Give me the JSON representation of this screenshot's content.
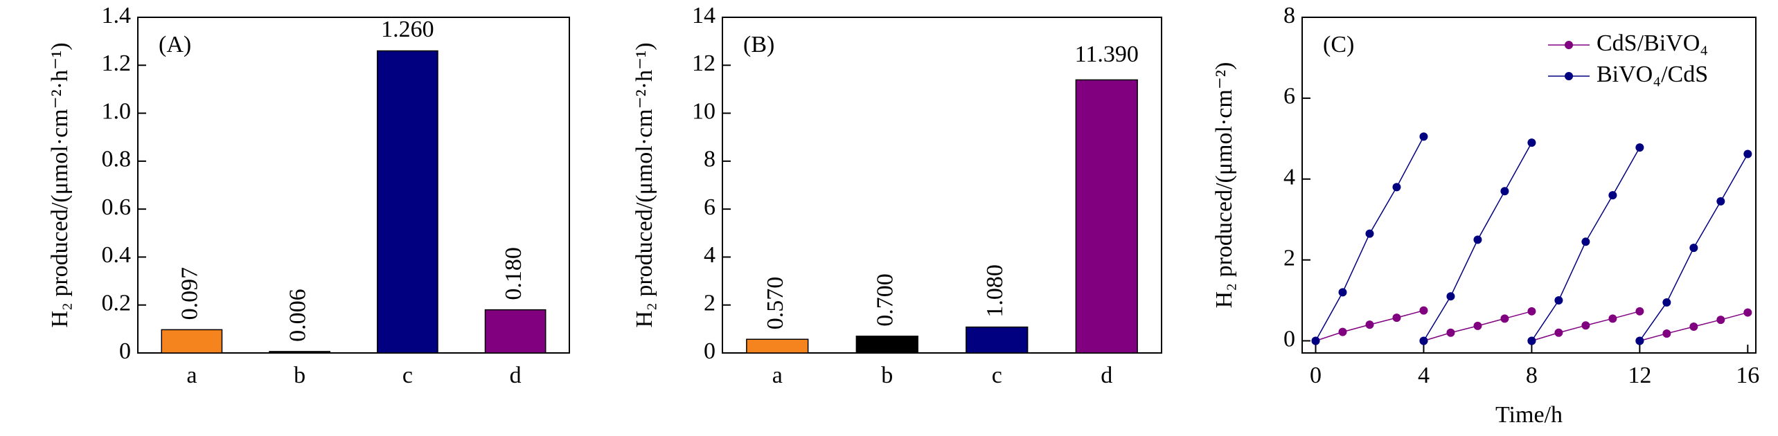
{
  "chart_data": [
    {
      "type": "bar",
      "panel": "(A)",
      "ylabel": "H₂ produced/(μmol·cm⁻²·h⁻¹)",
      "categories": [
        "a",
        "b",
        "c",
        "d"
      ],
      "values": [
        0.097,
        0.006,
        1.26,
        0.18
      ],
      "value_labels": [
        "0.097",
        "0.006",
        "1.260",
        "0.180"
      ],
      "colors": [
        "#f5841f",
        "#000000",
        "#000080",
        "#800080"
      ],
      "ylim": [
        0,
        1.4
      ],
      "yticks": [
        0,
        0.2,
        0.4,
        0.6,
        0.8,
        {
          "value": 1,
          "label": "1.0"
        },
        1.2,
        1.4
      ]
    },
    {
      "type": "bar",
      "panel": "(B)",
      "ylabel": "H₂ produced/(μmol·cm⁻²·h⁻¹)",
      "categories": [
        "a",
        "b",
        "c",
        "d"
      ],
      "values": [
        0.57,
        0.7,
        1.08,
        11.39
      ],
      "value_labels": [
        "0.570",
        "0.700",
        "1.080",
        "11.390"
      ],
      "colors": [
        "#f5841f",
        "#000000",
        "#000080",
        "#800080"
      ],
      "ylim": [
        0,
        14
      ],
      "yticks": [
        0,
        2,
        4,
        6,
        8,
        10,
        12,
        14
      ]
    },
    {
      "type": "line",
      "panel": "(C)",
      "ylabel": "H₂ produced/(μmol·cm⁻²)",
      "xlabel": "Time/h",
      "x": [
        0,
        1,
        2,
        3,
        4,
        null,
        4,
        5,
        6,
        7,
        8,
        null,
        8,
        9,
        10,
        11,
        12,
        null,
        12,
        13,
        14,
        15,
        16
      ],
      "series": [
        {
          "name": "CdS/BiVO₄",
          "color": "#800080",
          "values": [
            0,
            0.22,
            0.4,
            0.57,
            0.75,
            null,
            0,
            0.2,
            0.37,
            0.55,
            0.73,
            null,
            0,
            0.2,
            0.38,
            0.55,
            0.73,
            null,
            0,
            0.18,
            0.35,
            0.52,
            0.7
          ]
        },
        {
          "name": "BiVO₄/CdS",
          "color": "#000080",
          "values": [
            0,
            1.2,
            2.65,
            3.8,
            5.05,
            null,
            0,
            1.1,
            2.5,
            3.7,
            4.9,
            null,
            0,
            1.0,
            2.45,
            3.6,
            4.78,
            null,
            0,
            0.95,
            2.3,
            3.45,
            4.62
          ]
        }
      ],
      "xlim": [
        -0.5,
        16.3
      ],
      "xticks": [
        0,
        4,
        8,
        12,
        16
      ],
      "ylim": [
        -0.3,
        8
      ],
      "yticks": [
        0,
        2,
        4,
        6,
        8
      ],
      "legend": "upper right"
    }
  ]
}
